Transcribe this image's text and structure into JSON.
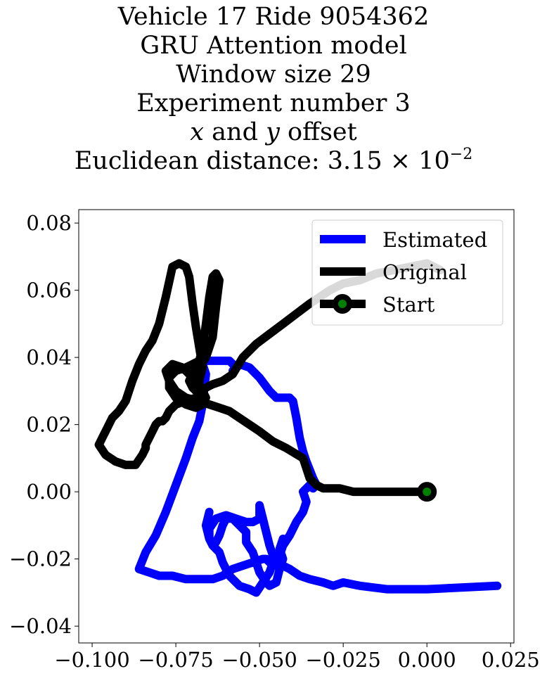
{
  "chart_data": {
    "type": "line",
    "title_lines": {
      "line1": "Vehicle 17 Ride 9054362",
      "line2": "GRU Attention model",
      "line3": "Window size 29",
      "line4": "Experiment number 3",
      "line5_x": "x",
      "line5_and": " and ",
      "line5_y": "y",
      "line5_rest": " offset",
      "line6_prefix": "Euclidean distance: 3.15 × 10",
      "line6_exp": "−2"
    },
    "xlabel": "",
    "ylabel": "",
    "xlim": [
      -0.104,
      0.026
    ],
    "ylim": [
      -0.045,
      0.084
    ],
    "xticks": [
      -0.1,
      -0.075,
      -0.05,
      -0.025,
      0.0,
      0.025
    ],
    "xtick_labels": [
      "−0.100",
      "−0.075",
      "−0.050",
      "−0.025",
      "0.000",
      "0.025"
    ],
    "yticks": [
      0.08,
      0.06,
      0.04,
      0.02,
      0.0,
      -0.02,
      -0.04
    ],
    "ytick_labels": [
      "0.08",
      "0.06",
      "0.04",
      "0.02",
      "0.00",
      "−0.02",
      "−0.04"
    ],
    "grid": false,
    "legend_position": "upper right",
    "series": [
      {
        "name": "Estimated",
        "color": "#0000ff",
        "x": [
          0.021,
          0.0,
          -0.012,
          -0.02,
          -0.025,
          -0.028,
          -0.031,
          -0.035,
          -0.038,
          -0.041,
          -0.043,
          -0.045,
          -0.047,
          -0.048,
          -0.049,
          -0.052,
          -0.055,
          -0.058,
          -0.061,
          -0.064,
          -0.067,
          -0.072,
          -0.076,
          -0.08,
          -0.083,
          -0.086,
          -0.084,
          -0.081,
          -0.078,
          -0.075,
          -0.072,
          -0.07,
          -0.068,
          -0.067,
          -0.0665,
          -0.066,
          -0.067,
          -0.0665,
          -0.066,
          -0.063,
          -0.059,
          -0.057,
          -0.058,
          -0.056,
          -0.053,
          -0.05,
          -0.047,
          -0.045,
          -0.043,
          -0.041,
          -0.04,
          -0.039,
          -0.038,
          -0.037,
          -0.036,
          -0.034,
          -0.033,
          -0.034,
          -0.035,
          -0.036,
          -0.037,
          -0.036,
          -0.037,
          -0.039,
          -0.041,
          -0.043,
          -0.044,
          -0.046,
          -0.047,
          -0.049,
          -0.051,
          -0.053,
          -0.056,
          -0.059,
          -0.061,
          -0.062,
          -0.064,
          -0.065,
          -0.065,
          -0.063,
          -0.06,
          -0.057,
          -0.054,
          -0.052,
          -0.05,
          -0.05,
          -0.049,
          -0.048,
          -0.047,
          -0.046,
          -0.045,
          -0.045,
          -0.044,
          -0.043,
          -0.043,
          -0.044,
          -0.043,
          -0.044,
          -0.045,
          -0.047,
          -0.048,
          -0.05,
          -0.051,
          -0.052,
          -0.054,
          -0.054,
          -0.055,
          -0.056,
          -0.057,
          -0.058,
          -0.06,
          -0.061,
          -0.062,
          -0.063,
          -0.064,
          -0.065,
          -0.066,
          -0.065
        ],
        "y": [
          -0.028,
          -0.029,
          -0.029,
          -0.028,
          -0.027,
          -0.028,
          -0.027,
          -0.026,
          -0.025,
          -0.023,
          -0.022,
          -0.021,
          -0.021,
          -0.02,
          -0.02,
          -0.021,
          -0.022,
          -0.023,
          -0.025,
          -0.026,
          -0.026,
          -0.026,
          -0.025,
          -0.025,
          -0.024,
          -0.023,
          -0.018,
          -0.013,
          -0.006,
          0.002,
          0.01,
          0.016,
          0.021,
          0.026,
          0.031,
          0.035,
          0.038,
          0.039,
          0.039,
          0.039,
          0.039,
          0.037,
          0.036,
          0.038,
          0.037,
          0.034,
          0.03,
          0.028,
          0.028,
          0.028,
          0.027,
          0.022,
          0.016,
          0.012,
          0.009,
          0.004,
          0.002,
          0.001,
          0.002,
          0.001,
          0.0,
          -0.003,
          -0.006,
          -0.009,
          -0.013,
          -0.016,
          -0.019,
          -0.021,
          -0.024,
          -0.027,
          -0.03,
          -0.029,
          -0.028,
          -0.025,
          -0.021,
          -0.018,
          -0.016,
          -0.014,
          -0.011,
          -0.008,
          -0.007,
          -0.008,
          -0.009,
          -0.009,
          -0.008,
          -0.004,
          -0.008,
          -0.012,
          -0.016,
          -0.019,
          -0.021,
          -0.022,
          -0.019,
          -0.016,
          -0.014,
          -0.017,
          -0.02,
          -0.023,
          -0.027,
          -0.028,
          -0.027,
          -0.024,
          -0.021,
          -0.018,
          -0.015,
          -0.012,
          -0.011,
          -0.01,
          -0.009,
          -0.008,
          -0.008,
          -0.01,
          -0.013,
          -0.015,
          -0.016,
          -0.014,
          -0.01,
          -0.006
        ]
      },
      {
        "name": "Original",
        "color": "#000000",
        "x": [
          0.0,
          -0.003,
          -0.008,
          -0.013,
          -0.018,
          -0.022,
          -0.026,
          -0.029,
          -0.031,
          -0.033,
          -0.035,
          -0.037,
          -0.042,
          -0.046,
          -0.05,
          -0.053,
          -0.056,
          -0.059,
          -0.062,
          -0.065,
          -0.068,
          -0.072,
          -0.075,
          -0.077,
          -0.078,
          -0.076,
          -0.073,
          -0.07,
          -0.067,
          -0.066,
          -0.067,
          -0.069,
          -0.072,
          -0.075,
          -0.077,
          -0.077,
          -0.075,
          -0.072,
          -0.07,
          -0.068,
          -0.067,
          -0.066,
          -0.065,
          -0.064,
          -0.063,
          -0.062,
          -0.063,
          -0.064,
          -0.066,
          -0.068,
          -0.07,
          -0.071,
          -0.07,
          -0.069,
          -0.068,
          -0.068,
          -0.067,
          -0.068,
          -0.069,
          -0.07,
          -0.071,
          -0.072,
          -0.074,
          -0.076,
          -0.078,
          -0.08,
          -0.082,
          -0.084,
          -0.086,
          -0.088,
          -0.09,
          -0.092,
          -0.094,
          -0.095,
          -0.096,
          -0.097,
          -0.098,
          -0.096,
          -0.093,
          -0.09,
          -0.087,
          -0.085,
          -0.084,
          -0.084,
          -0.083,
          -0.082,
          -0.081,
          -0.08,
          -0.079,
          -0.078,
          -0.077,
          -0.075,
          -0.072,
          -0.069,
          -0.066,
          -0.064,
          -0.061,
          -0.058,
          -0.055,
          -0.051,
          -0.047,
          -0.043,
          -0.039,
          -0.035,
          -0.032,
          -0.029,
          -0.025,
          -0.02,
          -0.015,
          -0.01,
          -0.005,
          0.0,
          0.004
        ],
        "y": [
          0.0,
          0.0,
          0.0,
          0.0,
          0.0,
          0.0,
          0.001,
          0.001,
          0.001,
          0.002,
          0.004,
          0.01,
          0.013,
          0.015,
          0.018,
          0.02,
          0.022,
          0.024,
          0.025,
          0.026,
          0.027,
          0.028,
          0.03,
          0.033,
          0.036,
          0.038,
          0.037,
          0.034,
          0.03,
          0.028,
          0.026,
          0.025,
          0.026,
          0.028,
          0.031,
          0.034,
          0.036,
          0.037,
          0.038,
          0.039,
          0.043,
          0.05,
          0.058,
          0.064,
          0.065,
          0.063,
          0.055,
          0.046,
          0.04,
          0.037,
          0.035,
          0.033,
          0.031,
          0.03,
          0.03,
          0.033,
          0.037,
          0.043,
          0.049,
          0.056,
          0.064,
          0.067,
          0.068,
          0.067,
          0.058,
          0.05,
          0.045,
          0.042,
          0.038,
          0.033,
          0.027,
          0.024,
          0.022,
          0.02,
          0.018,
          0.016,
          0.014,
          0.011,
          0.009,
          0.008,
          0.008,
          0.011,
          0.013,
          0.014,
          0.016,
          0.018,
          0.02,
          0.021,
          0.021,
          0.022,
          0.024,
          0.026,
          0.027,
          0.028,
          0.031,
          0.032,
          0.033,
          0.035,
          0.04,
          0.044,
          0.047,
          0.05,
          0.053,
          0.056,
          0.058,
          0.06,
          0.062,
          0.063,
          0.065,
          0.066,
          0.067,
          0.068,
          0.066
        ]
      }
    ],
    "start_point": {
      "name": "Start",
      "x": 0.0,
      "y": 0.0,
      "color": "#000000",
      "fill": "#008000"
    },
    "legend": [
      {
        "label": "Estimated",
        "color": "#0000ff",
        "marker": false
      },
      {
        "label": "Original",
        "color": "#000000",
        "marker": false
      },
      {
        "label": "Start",
        "color": "#000000",
        "marker": true,
        "marker_fill": "#008000"
      }
    ]
  }
}
